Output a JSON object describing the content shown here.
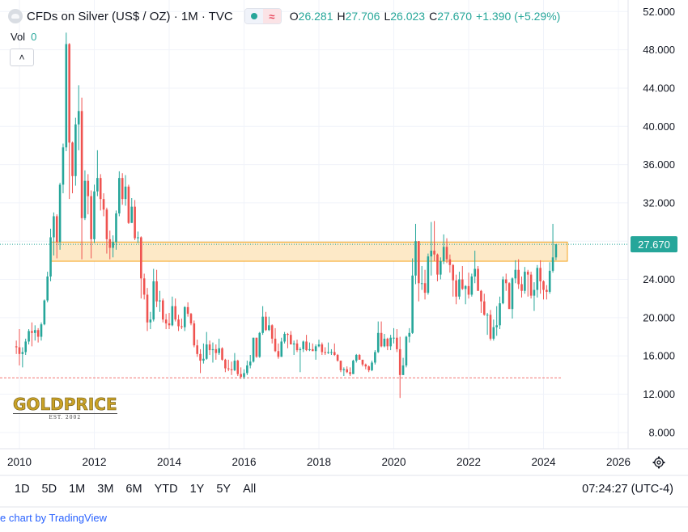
{
  "header": {
    "title": "CFDs on Silver (US$ / OZ) · 1M · TVC",
    "ohlc": {
      "o_label": "O",
      "o": "26.281",
      "h_label": "H",
      "h": "27.706",
      "l_label": "L",
      "l": "26.023",
      "c_label": "C",
      "c": "27.670",
      "change": "+1.390 (+5.29%)"
    },
    "wave_glyph": "≈"
  },
  "volume": {
    "label": "Vol",
    "value": "0"
  },
  "collapse_glyph": "˄",
  "ranges": [
    "1D",
    "5D",
    "1M",
    "3M",
    "6M",
    "YTD",
    "1Y",
    "5Y",
    "All"
  ],
  "clock": "07:24:27 (UTC-4)",
  "footer": "e chart by TradingView",
  "brand": {
    "word": "GOLDPRICE",
    "est": "EST. 2002"
  },
  "icons": {
    "logo": "silver-logo-icon",
    "settings": "gear-icon"
  },
  "colors": {
    "up": "#26a69a",
    "down": "#ef5350",
    "band_fill": "#fde9c7",
    "band_stroke": "#f5a623",
    "support_line": "#ef5350",
    "price_tag": "#26a69a"
  },
  "chart_data": {
    "type": "candlestick",
    "interval": "1M",
    "y_ticks": [
      "52.000",
      "48.000",
      "44.000",
      "40.000",
      "36.000",
      "32.000",
      "28.000",
      "24.000",
      "20.000",
      "16.000",
      "12.000",
      "8.000"
    ],
    "x_ticks": [
      "2010",
      "2012",
      "2014",
      "2016",
      "2018",
      "2020",
      "2022",
      "2024",
      "2026"
    ],
    "ylim": [
      8,
      52
    ],
    "last_price": "27.670",
    "resistance_zone": [
      25.9,
      27.9
    ],
    "support_level": 13.7,
    "candles": [
      [
        "2009-12",
        17.0,
        17.6,
        16.2,
        16.9
      ],
      [
        "2010-01",
        16.9,
        18.8,
        15.0,
        16.2
      ],
      [
        "2010-02",
        16.2,
        16.9,
        14.8,
        16.4
      ],
      [
        "2010-03",
        16.4,
        17.8,
        16.1,
        17.5
      ],
      [
        "2010-04",
        17.5,
        18.8,
        17.2,
        18.6
      ],
      [
        "2010-05",
        18.6,
        19.5,
        17.0,
        18.4
      ],
      [
        "2010-06",
        18.4,
        19.2,
        17.6,
        18.7
      ],
      [
        "2010-07",
        18.7,
        18.9,
        17.4,
        18.0
      ],
      [
        "2010-08",
        18.0,
        19.5,
        17.6,
        19.3
      ],
      [
        "2010-09",
        19.3,
        21.9,
        19.2,
        21.8
      ],
      [
        "2010-10",
        21.8,
        24.8,
        21.6,
        24.3
      ],
      [
        "2010-11",
        24.3,
        29.3,
        23.8,
        28.4
      ],
      [
        "2010-12",
        28.4,
        31.0,
        26.5,
        30.6
      ],
      [
        "2011-01",
        30.6,
        30.8,
        26.2,
        27.9
      ],
      [
        "2011-02",
        27.9,
        34.1,
        27.1,
        33.9
      ],
      [
        "2011-03",
        33.9,
        38.2,
        33.0,
        37.8
      ],
      [
        "2011-04",
        37.8,
        49.8,
        37.4,
        48.6
      ],
      [
        "2011-05",
        48.6,
        48.7,
        32.4,
        38.3
      ],
      [
        "2011-06",
        38.3,
        38.4,
        33.0,
        34.8
      ],
      [
        "2011-07",
        34.8,
        40.9,
        33.8,
        40.2
      ],
      [
        "2011-08",
        40.2,
        44.3,
        37.5,
        41.6
      ],
      [
        "2011-09",
        41.6,
        43.0,
        26.1,
        30.4
      ],
      [
        "2011-10",
        30.4,
        35.4,
        30.2,
        34.3
      ],
      [
        "2011-11",
        34.3,
        35.0,
        30.8,
        32.7
      ],
      [
        "2011-12",
        32.7,
        33.3,
        26.2,
        28.2
      ],
      [
        "2012-01",
        28.2,
        33.9,
        27.8,
        33.2
      ],
      [
        "2012-02",
        33.2,
        37.5,
        32.7,
        34.6
      ],
      [
        "2012-03",
        34.6,
        35.0,
        31.2,
        32.4
      ],
      [
        "2012-04",
        32.4,
        33.0,
        30.6,
        31.3
      ],
      [
        "2012-05",
        31.3,
        31.5,
        26.7,
        28.2
      ],
      [
        "2012-06",
        28.2,
        29.1,
        26.1,
        27.3
      ],
      [
        "2012-07",
        27.3,
        28.6,
        26.3,
        27.9
      ],
      [
        "2012-08",
        27.9,
        31.2,
        27.1,
        30.9
      ],
      [
        "2012-09",
        30.9,
        35.3,
        30.6,
        34.6
      ],
      [
        "2012-10",
        34.6,
        35.1,
        31.8,
        32.4
      ],
      [
        "2012-11",
        32.4,
        34.9,
        31.7,
        33.7
      ],
      [
        "2012-12",
        33.7,
        33.9,
        29.8,
        29.9
      ],
      [
        "2013-01",
        29.9,
        32.5,
        29.9,
        31.6
      ],
      [
        "2013-02",
        31.6,
        32.3,
        28.1,
        28.3
      ],
      [
        "2013-03",
        28.3,
        29.0,
        27.8,
        28.4
      ],
      [
        "2013-04",
        28.4,
        28.5,
        22.0,
        24.1
      ],
      [
        "2013-05",
        24.1,
        24.6,
        21.9,
        22.4
      ],
      [
        "2013-06",
        22.4,
        23.1,
        18.6,
        19.5
      ],
      [
        "2013-07",
        19.5,
        20.6,
        18.8,
        19.8
      ],
      [
        "2013-08",
        19.8,
        25.1,
        19.6,
        23.8
      ],
      [
        "2013-09",
        23.8,
        25.0,
        21.1,
        21.7
      ],
      [
        "2013-10",
        21.7,
        22.8,
        20.6,
        21.8
      ],
      [
        "2013-11",
        21.8,
        22.0,
        19.5,
        19.8
      ],
      [
        "2013-12",
        19.8,
        20.4,
        18.8,
        19.4
      ],
      [
        "2014-01",
        19.4,
        20.5,
        18.8,
        19.2
      ],
      [
        "2014-02",
        19.2,
        22.2,
        19.1,
        21.2
      ],
      [
        "2014-03",
        21.2,
        22.0,
        19.6,
        19.8
      ],
      [
        "2014-04",
        19.8,
        20.3,
        18.6,
        19.1
      ],
      [
        "2014-05",
        19.1,
        19.9,
        18.8,
        19.0
      ],
      [
        "2014-06",
        19.0,
        21.2,
        18.6,
        21.1
      ],
      [
        "2014-07",
        21.1,
        21.6,
        20.1,
        20.4
      ],
      [
        "2014-08",
        20.4,
        20.5,
        19.2,
        19.4
      ],
      [
        "2014-09",
        19.4,
        19.7,
        16.9,
        17.1
      ],
      [
        "2014-10",
        17.1,
        17.7,
        15.9,
        16.2
      ],
      [
        "2014-11",
        16.2,
        16.7,
        14.2,
        15.5
      ],
      [
        "2014-12",
        15.5,
        17.3,
        15.2,
        15.7
      ],
      [
        "2015-01",
        15.7,
        18.5,
        15.6,
        17.2
      ],
      [
        "2015-02",
        17.2,
        17.6,
        16.1,
        16.6
      ],
      [
        "2015-03",
        16.6,
        17.4,
        15.3,
        16.7
      ],
      [
        "2015-04",
        16.7,
        17.2,
        15.6,
        16.3
      ],
      [
        "2015-05",
        16.3,
        17.8,
        16.1,
        16.8
      ],
      [
        "2015-06",
        16.8,
        16.9,
        15.5,
        15.6
      ],
      [
        "2015-07",
        15.6,
        15.7,
        14.3,
        14.7
      ],
      [
        "2015-08",
        14.7,
        15.6,
        14.4,
        14.6
      ],
      [
        "2015-09",
        14.6,
        15.4,
        14.0,
        14.5
      ],
      [
        "2015-10",
        14.5,
        16.3,
        14.4,
        15.5
      ],
      [
        "2015-11",
        15.5,
        15.6,
        13.9,
        14.1
      ],
      [
        "2015-12",
        14.1,
        14.8,
        13.6,
        13.8
      ],
      [
        "2016-01",
        13.8,
        14.6,
        13.6,
        14.2
      ],
      [
        "2016-02",
        14.2,
        15.5,
        14.0,
        15.0
      ],
      [
        "2016-03",
        15.0,
        16.1,
        14.7,
        15.4
      ],
      [
        "2016-04",
        15.4,
        17.9,
        15.3,
        17.9
      ],
      [
        "2016-05",
        17.9,
        17.9,
        15.8,
        15.9
      ],
      [
        "2016-06",
        15.9,
        18.5,
        15.8,
        18.4
      ],
      [
        "2016-07",
        18.4,
        21.2,
        18.2,
        20.1
      ],
      [
        "2016-08",
        20.1,
        20.6,
        18.6,
        18.7
      ],
      [
        "2016-09",
        18.7,
        20.1,
        18.6,
        19.2
      ],
      [
        "2016-10",
        19.2,
        19.3,
        17.3,
        17.8
      ],
      [
        "2016-11",
        17.8,
        18.9,
        16.4,
        16.5
      ],
      [
        "2016-12",
        16.5,
        17.3,
        15.7,
        15.9
      ],
      [
        "2017-01",
        15.9,
        17.9,
        15.9,
        17.5
      ],
      [
        "2017-02",
        17.5,
        18.5,
        17.3,
        18.3
      ],
      [
        "2017-03",
        18.3,
        18.4,
        16.8,
        18.2
      ],
      [
        "2017-04",
        18.2,
        18.6,
        17.2,
        17.2
      ],
      [
        "2017-05",
        17.2,
        17.6,
        16.1,
        17.3
      ],
      [
        "2017-06",
        17.3,
        17.7,
        16.4,
        16.6
      ],
      [
        "2017-07",
        16.6,
        16.9,
        14.3,
        16.7
      ],
      [
        "2017-08",
        16.7,
        17.6,
        16.4,
        17.5
      ],
      [
        "2017-09",
        17.5,
        18.2,
        16.5,
        16.6
      ],
      [
        "2017-10",
        16.6,
        17.4,
        16.5,
        16.7
      ],
      [
        "2017-11",
        16.7,
        17.3,
        16.5,
        16.5
      ],
      [
        "2017-12",
        16.5,
        17.2,
        15.6,
        17.0
      ],
      [
        "2018-01",
        17.0,
        17.7,
        16.9,
        17.2
      ],
      [
        "2018-02",
        17.2,
        17.4,
        16.1,
        16.4
      ],
      [
        "2018-03",
        16.4,
        16.9,
        16.1,
        16.3
      ],
      [
        "2018-04",
        16.3,
        17.4,
        16.2,
        16.4
      ],
      [
        "2018-05",
        16.4,
        16.7,
        16.1,
        16.4
      ],
      [
        "2018-06",
        16.4,
        17.3,
        16.0,
        16.1
      ],
      [
        "2018-07",
        16.1,
        16.2,
        15.4,
        15.5
      ],
      [
        "2018-08",
        15.5,
        15.5,
        14.3,
        14.5
      ],
      [
        "2018-09",
        14.5,
        14.8,
        13.9,
        14.6
      ],
      [
        "2018-10",
        14.6,
        14.9,
        14.2,
        14.3
      ],
      [
        "2018-11",
        14.3,
        14.8,
        13.9,
        14.1
      ],
      [
        "2018-12",
        14.1,
        15.6,
        14.1,
        15.5
      ],
      [
        "2019-01",
        15.5,
        16.2,
        15.3,
        16.1
      ],
      [
        "2019-02",
        16.1,
        16.2,
        15.6,
        15.6
      ],
      [
        "2019-03",
        15.6,
        15.6,
        14.9,
        15.1
      ],
      [
        "2019-04",
        15.1,
        15.2,
        14.6,
        14.9
      ],
      [
        "2019-05",
        14.9,
        15.0,
        14.3,
        14.5
      ],
      [
        "2019-06",
        14.5,
        15.5,
        14.4,
        15.3
      ],
      [
        "2019-07",
        15.3,
        16.6,
        15.1,
        16.4
      ],
      [
        "2019-08",
        16.4,
        19.6,
        16.3,
        18.4
      ],
      [
        "2019-09",
        18.4,
        19.6,
        16.9,
        17.0
      ],
      [
        "2019-10",
        17.0,
        18.3,
        16.9,
        17.8
      ],
      [
        "2019-11",
        17.8,
        17.9,
        16.6,
        17.0
      ],
      [
        "2019-12",
        17.0,
        18.2,
        16.6,
        17.9
      ],
      [
        "2020-01",
        17.9,
        18.9,
        17.3,
        17.9
      ],
      [
        "2020-02",
        17.9,
        18.8,
        16.4,
        16.7
      ],
      [
        "2020-03",
        16.7,
        18.0,
        11.6,
        14.0
      ],
      [
        "2020-04",
        14.0,
        15.8,
        14.0,
        15.0
      ],
      [
        "2020-05",
        15.0,
        18.1,
        14.8,
        18.0
      ],
      [
        "2020-06",
        18.0,
        18.9,
        17.4,
        18.4
      ],
      [
        "2020-07",
        18.4,
        26.2,
        18.3,
        24.4
      ],
      [
        "2020-08",
        24.4,
        29.8,
        23.5,
        28.0
      ],
      [
        "2020-09",
        28.0,
        28.0,
        21.7,
        23.6
      ],
      [
        "2020-10",
        23.6,
        25.4,
        22.9,
        23.6
      ],
      [
        "2020-11",
        23.6,
        25.0,
        21.9,
        22.6
      ],
      [
        "2020-12",
        22.6,
        26.7,
        22.4,
        26.4
      ],
      [
        "2021-01",
        26.4,
        30.0,
        24.4,
        27.0
      ],
      [
        "2021-02",
        27.0,
        30.1,
        25.9,
        26.6
      ],
      [
        "2021-03",
        26.6,
        26.7,
        23.8,
        24.5
      ],
      [
        "2021-04",
        24.5,
        26.3,
        24.0,
        25.9
      ],
      [
        "2021-05",
        25.9,
        28.7,
        25.6,
        27.4
      ],
      [
        "2021-06",
        27.4,
        28.3,
        25.7,
        26.1
      ],
      [
        "2021-07",
        26.1,
        26.6,
        24.7,
        25.5
      ],
      [
        "2021-08",
        25.5,
        25.6,
        22.2,
        23.9
      ],
      [
        "2021-09",
        23.9,
        24.5,
        21.4,
        22.2
      ],
      [
        "2021-10",
        22.2,
        24.8,
        21.9,
        24.0
      ],
      [
        "2021-11",
        24.0,
        25.4,
        22.9,
        23.0
      ],
      [
        "2021-12",
        23.0,
        23.4,
        21.4,
        23.3
      ],
      [
        "2022-01",
        23.3,
        24.7,
        22.0,
        22.4
      ],
      [
        "2022-02",
        22.4,
        24.6,
        22.2,
        24.3
      ],
      [
        "2022-03",
        24.3,
        27.0,
        23.6,
        25.1
      ],
      [
        "2022-04",
        25.1,
        25.4,
        22.8,
        22.8
      ],
      [
        "2022-05",
        22.8,
        22.9,
        20.5,
        21.7
      ],
      [
        "2022-06",
        21.7,
        22.5,
        20.2,
        20.3
      ],
      [
        "2022-07",
        20.3,
        20.5,
        18.2,
        20.3
      ],
      [
        "2022-08",
        20.3,
        20.8,
        17.6,
        17.8
      ],
      [
        "2022-09",
        17.8,
        19.8,
        17.6,
        19.0
      ],
      [
        "2022-10",
        19.0,
        21.2,
        18.1,
        19.2
      ],
      [
        "2022-11",
        19.2,
        22.2,
        18.8,
        21.5
      ],
      [
        "2022-12",
        21.5,
        24.3,
        21.4,
        24.0
      ],
      [
        "2023-01",
        24.0,
        24.6,
        22.8,
        23.6
      ],
      [
        "2023-02",
        23.6,
        23.7,
        21.1,
        20.9
      ],
      [
        "2023-03",
        20.9,
        24.2,
        19.9,
        24.1
      ],
      [
        "2023-04",
        24.1,
        26.0,
        23.6,
        25.0
      ],
      [
        "2023-05",
        25.0,
        26.1,
        23.0,
        23.5
      ],
      [
        "2023-06",
        23.5,
        24.3,
        22.1,
        22.8
      ],
      [
        "2023-07",
        22.8,
        25.3,
        22.5,
        24.8
      ],
      [
        "2023-08",
        24.8,
        25.0,
        22.2,
        24.5
      ],
      [
        "2023-09",
        24.5,
        24.8,
        22.0,
        22.3
      ],
      [
        "2023-10",
        22.3,
        23.7,
        20.7,
        22.9
      ],
      [
        "2023-11",
        22.9,
        25.5,
        22.1,
        25.2
      ],
      [
        "2023-12",
        25.2,
        26.0,
        22.5,
        23.8
      ],
      [
        "2024-01",
        23.8,
        23.9,
        21.9,
        22.9
      ],
      [
        "2024-02",
        22.9,
        23.4,
        21.9,
        22.7
      ],
      [
        "2024-03",
        22.7,
        25.8,
        22.5,
        24.9
      ],
      [
        "2024-04",
        24.9,
        29.8,
        24.7,
        26.3
      ],
      [
        "2024-05",
        26.3,
        27.7,
        26.0,
        27.67
      ]
    ]
  }
}
